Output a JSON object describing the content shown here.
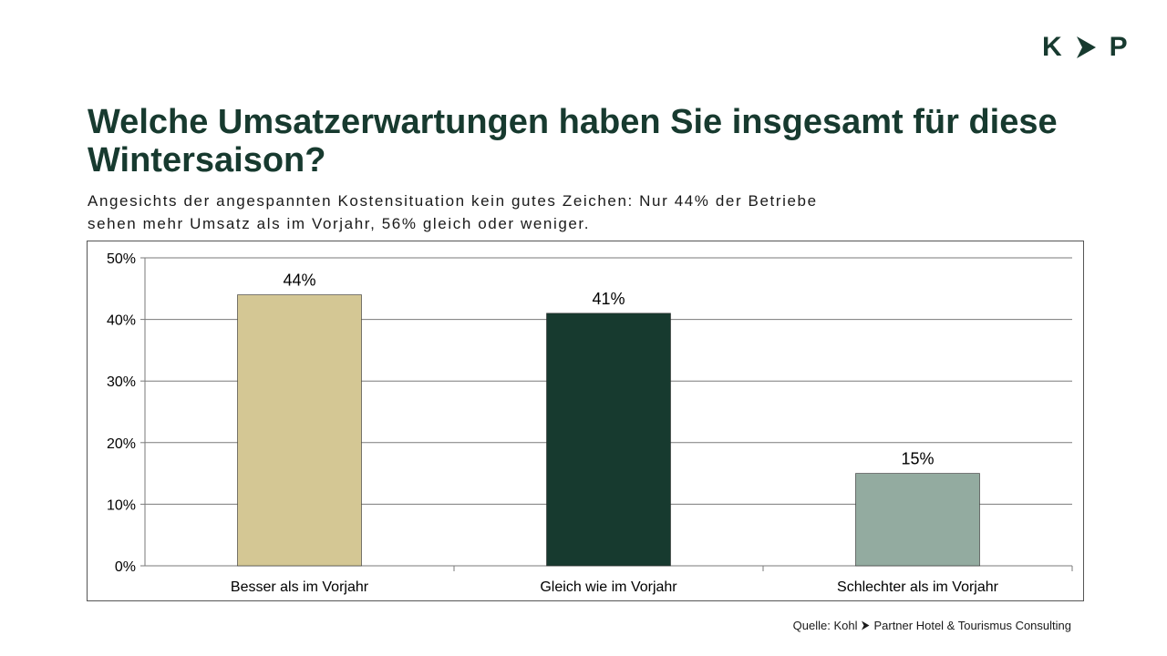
{
  "logo": {
    "left": "K",
    "right": "P",
    "accent_color": "#173a2f"
  },
  "header": {
    "title": "Welche Umsatzerwartungen haben Sie insgesamt für diese Wintersaison?",
    "subtitle": "Angesichts der angespannten Kostensituation kein gutes Zeichen: Nur 44% der Betriebe sehen mehr Umsatz als im Vorjahr, 56% gleich oder weniger."
  },
  "footer": {
    "source_prefix": "Quelle: Kohl",
    "source_suffix": "Partner Hotel & Tourismus Consulting"
  },
  "chart_data": {
    "type": "bar",
    "title": "",
    "xlabel": "",
    "ylabel": "",
    "categories": [
      "Besser als im Vorjahr",
      "Gleich wie im Vorjahr",
      "Schlechter als im Vorjahr"
    ],
    "values": [
      44,
      41,
      15
    ],
    "value_labels": [
      "44%",
      "41%",
      "15%"
    ],
    "bar_colors": [
      "#d4c794",
      "#173a2f",
      "#93aba0"
    ],
    "ylim": [
      0,
      50
    ],
    "yticks": [
      0,
      10,
      20,
      30,
      40,
      50
    ],
    "ytick_labels": [
      "0%",
      "10%",
      "20%",
      "30%",
      "40%",
      "50%"
    ],
    "grid": true,
    "legend": "none"
  }
}
